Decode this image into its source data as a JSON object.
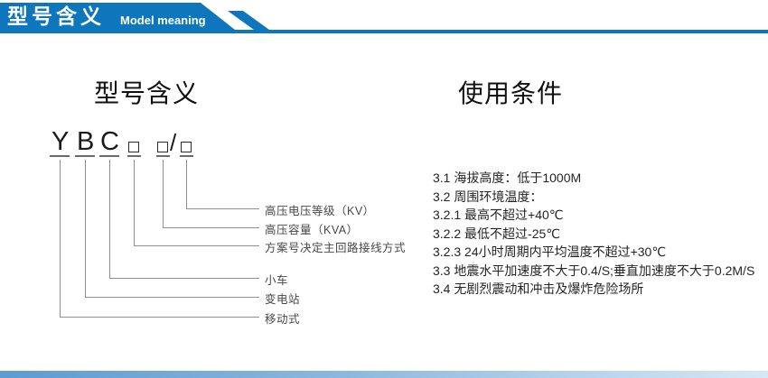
{
  "header": {
    "title_cn": "型号含义",
    "title_en": "Model meaning"
  },
  "colors": {
    "accent": "#0e76bc",
    "bottom_bar_left": "#5c9bd3",
    "bottom_bar_right": "#d6e8f6"
  },
  "model_section": {
    "title": "型号含义",
    "code_separator": "/",
    "items": [
      {
        "code": "Y",
        "label": "移动式"
      },
      {
        "code": "B",
        "label": "变电站"
      },
      {
        "code": "C",
        "label": "小车"
      },
      {
        "code": "□",
        "label": "方案号决定主回路接线方式"
      },
      {
        "code": "□",
        "label": "高压容量（KVA）"
      },
      {
        "code": "□",
        "label": "高压电压等级（KV）"
      }
    ]
  },
  "usage_section": {
    "title": "使用条件",
    "conditions": [
      "3.1 海拔高度：低于1000M",
      "3.2 周围环境温度：",
      "3.2.1 最高不超过+40℃",
      "3.2.2 最低不超过-25℃",
      "3.2.3 24小时周期内平均温度不超过+30℃",
      "3.3 地震水平加速度不大于0.4/S;垂直加速度不大于0.2M/S",
      "3.4 无剧烈震动和冲击及爆炸危险场所"
    ]
  }
}
